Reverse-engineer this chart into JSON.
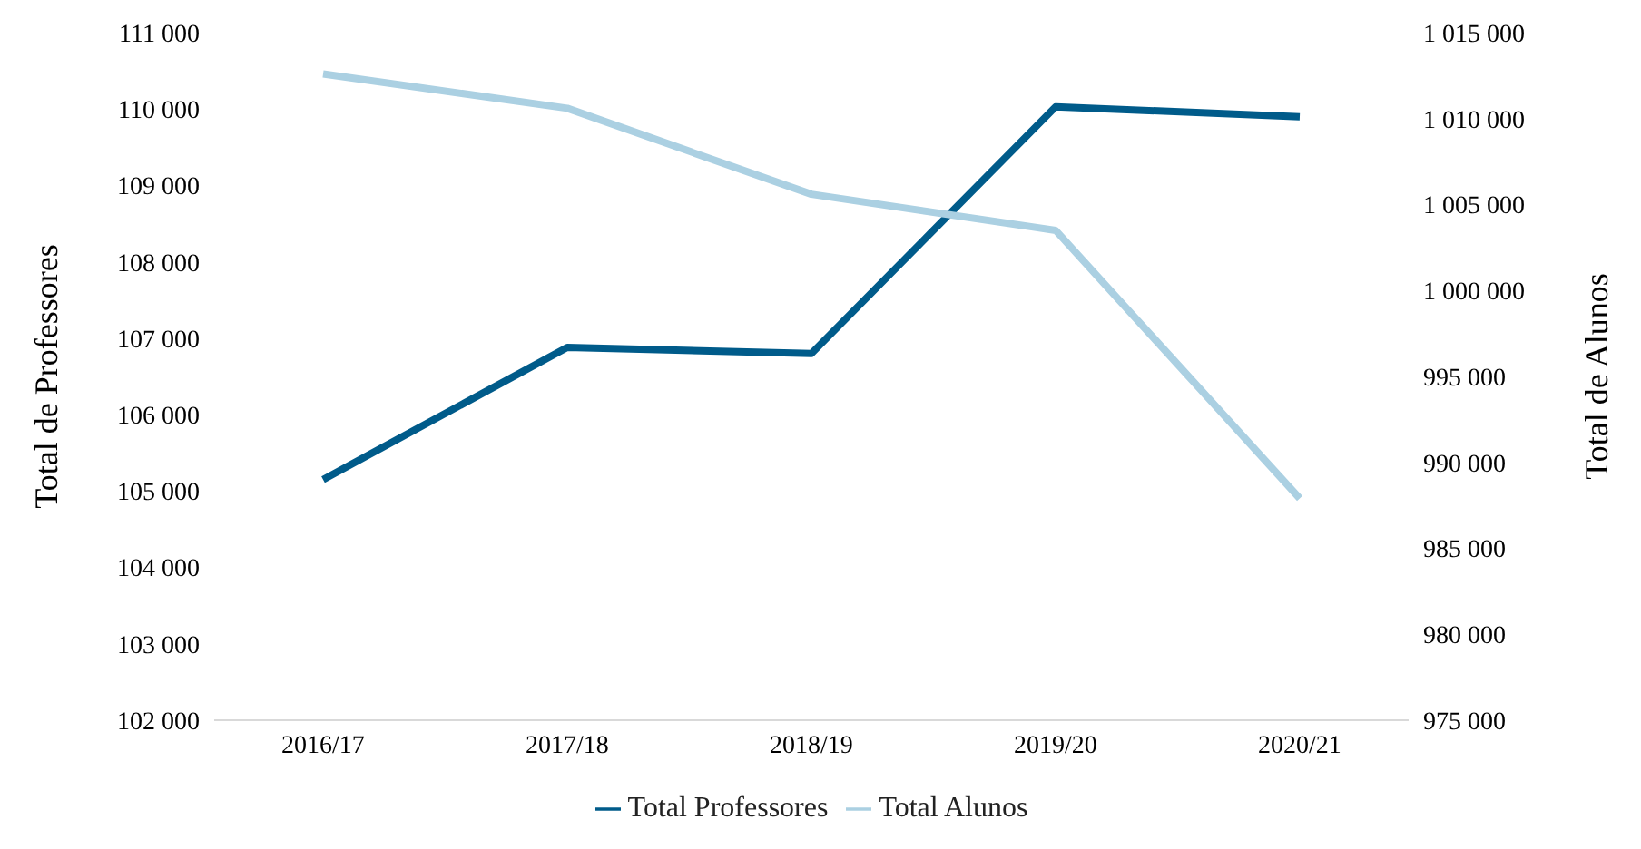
{
  "chart_data": {
    "type": "line",
    "categories": [
      "2016/17",
      "2017/18",
      "2018/19",
      "2019/20",
      "2020/21"
    ],
    "ylabel": "Total de Professores",
    "y2label": "Total de Alunos",
    "ylim": [
      102000,
      111000
    ],
    "yticks": [
      {
        "value": 102000,
        "label": "102 000"
      },
      {
        "value": 103000,
        "label": "103 000"
      },
      {
        "value": 104000,
        "label": "104 000"
      },
      {
        "value": 105000,
        "label": "105 000"
      },
      {
        "value": 106000,
        "label": "106 000"
      },
      {
        "value": 107000,
        "label": "107 000"
      },
      {
        "value": 108000,
        "label": "108 000"
      },
      {
        "value": 109000,
        "label": "109 000"
      },
      {
        "value": 110000,
        "label": "110 000"
      },
      {
        "value": 111000,
        "label": "111 000"
      }
    ],
    "y2lim": [
      975000,
      1015000
    ],
    "y2ticks": [
      {
        "value": 975000,
        "label": "975 000"
      },
      {
        "value": 980000,
        "label": "980 000"
      },
      {
        "value": 985000,
        "label": "985 000"
      },
      {
        "value": 990000,
        "label": "990 000"
      },
      {
        "value": 995000,
        "label": "995 000"
      },
      {
        "value": 1000000,
        "label": "1 000 000"
      },
      {
        "value": 1005000,
        "label": "1 005 000"
      },
      {
        "value": 1010000,
        "label": "1 010 000"
      },
      {
        "value": 1015000,
        "label": "1 015 000"
      }
    ],
    "series": [
      {
        "name": "Total Professores",
        "color": "#005b8a",
        "values": [
          105150,
          106880,
          106800,
          110030,
          109900
        ]
      },
      {
        "name": "Total Alunos",
        "color": "#abd0e2",
        "axis": "y2",
        "values": [
          1012600,
          1010600,
          1005600,
          1003500,
          987900
        ]
      }
    ],
    "grid": false,
    "legend": "bottom",
    "marker": "none"
  }
}
